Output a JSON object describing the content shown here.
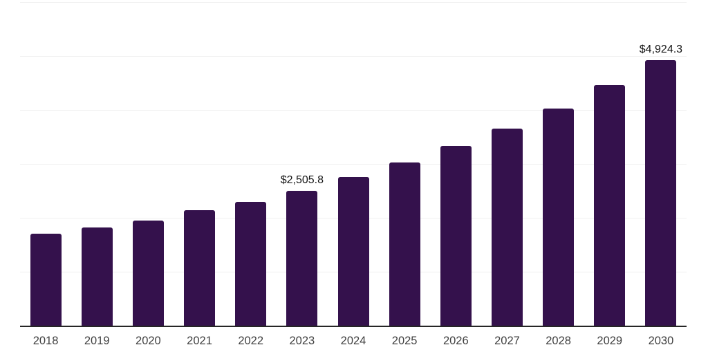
{
  "chart_data": {
    "type": "bar",
    "title": "",
    "xlabel": "",
    "ylabel": "",
    "categories": [
      "2018",
      "2019",
      "2020",
      "2021",
      "2022",
      "2023",
      "2024",
      "2025",
      "2026",
      "2027",
      "2028",
      "2029",
      "2030"
    ],
    "values": [
      1700.0,
      1820.0,
      1950.0,
      2140.0,
      2300.0,
      2505.8,
      2760.0,
      3030.0,
      3330.0,
      3660.0,
      4020.0,
      4460.0,
      4924.3
    ],
    "data_labels": [
      {
        "index": 5,
        "category": "2023",
        "text": "$2,505.8"
      },
      {
        "index": 12,
        "category": "2030",
        "text": "$4,924.3"
      }
    ],
    "ylim": [
      0,
      6000
    ],
    "gridline_values": [
      1000,
      2000,
      3000,
      4000,
      5000,
      6000
    ],
    "grid": "horizontal-only",
    "legend_position": "none",
    "y_axis_tick_labels_visible": false,
    "colors": {
      "bar": "#34114c",
      "axis_line": "#262626",
      "gridline": "#f0f0f0",
      "tick_label": "#3f3f3f",
      "data_label": "#141414",
      "background": "#ffffff"
    }
  }
}
